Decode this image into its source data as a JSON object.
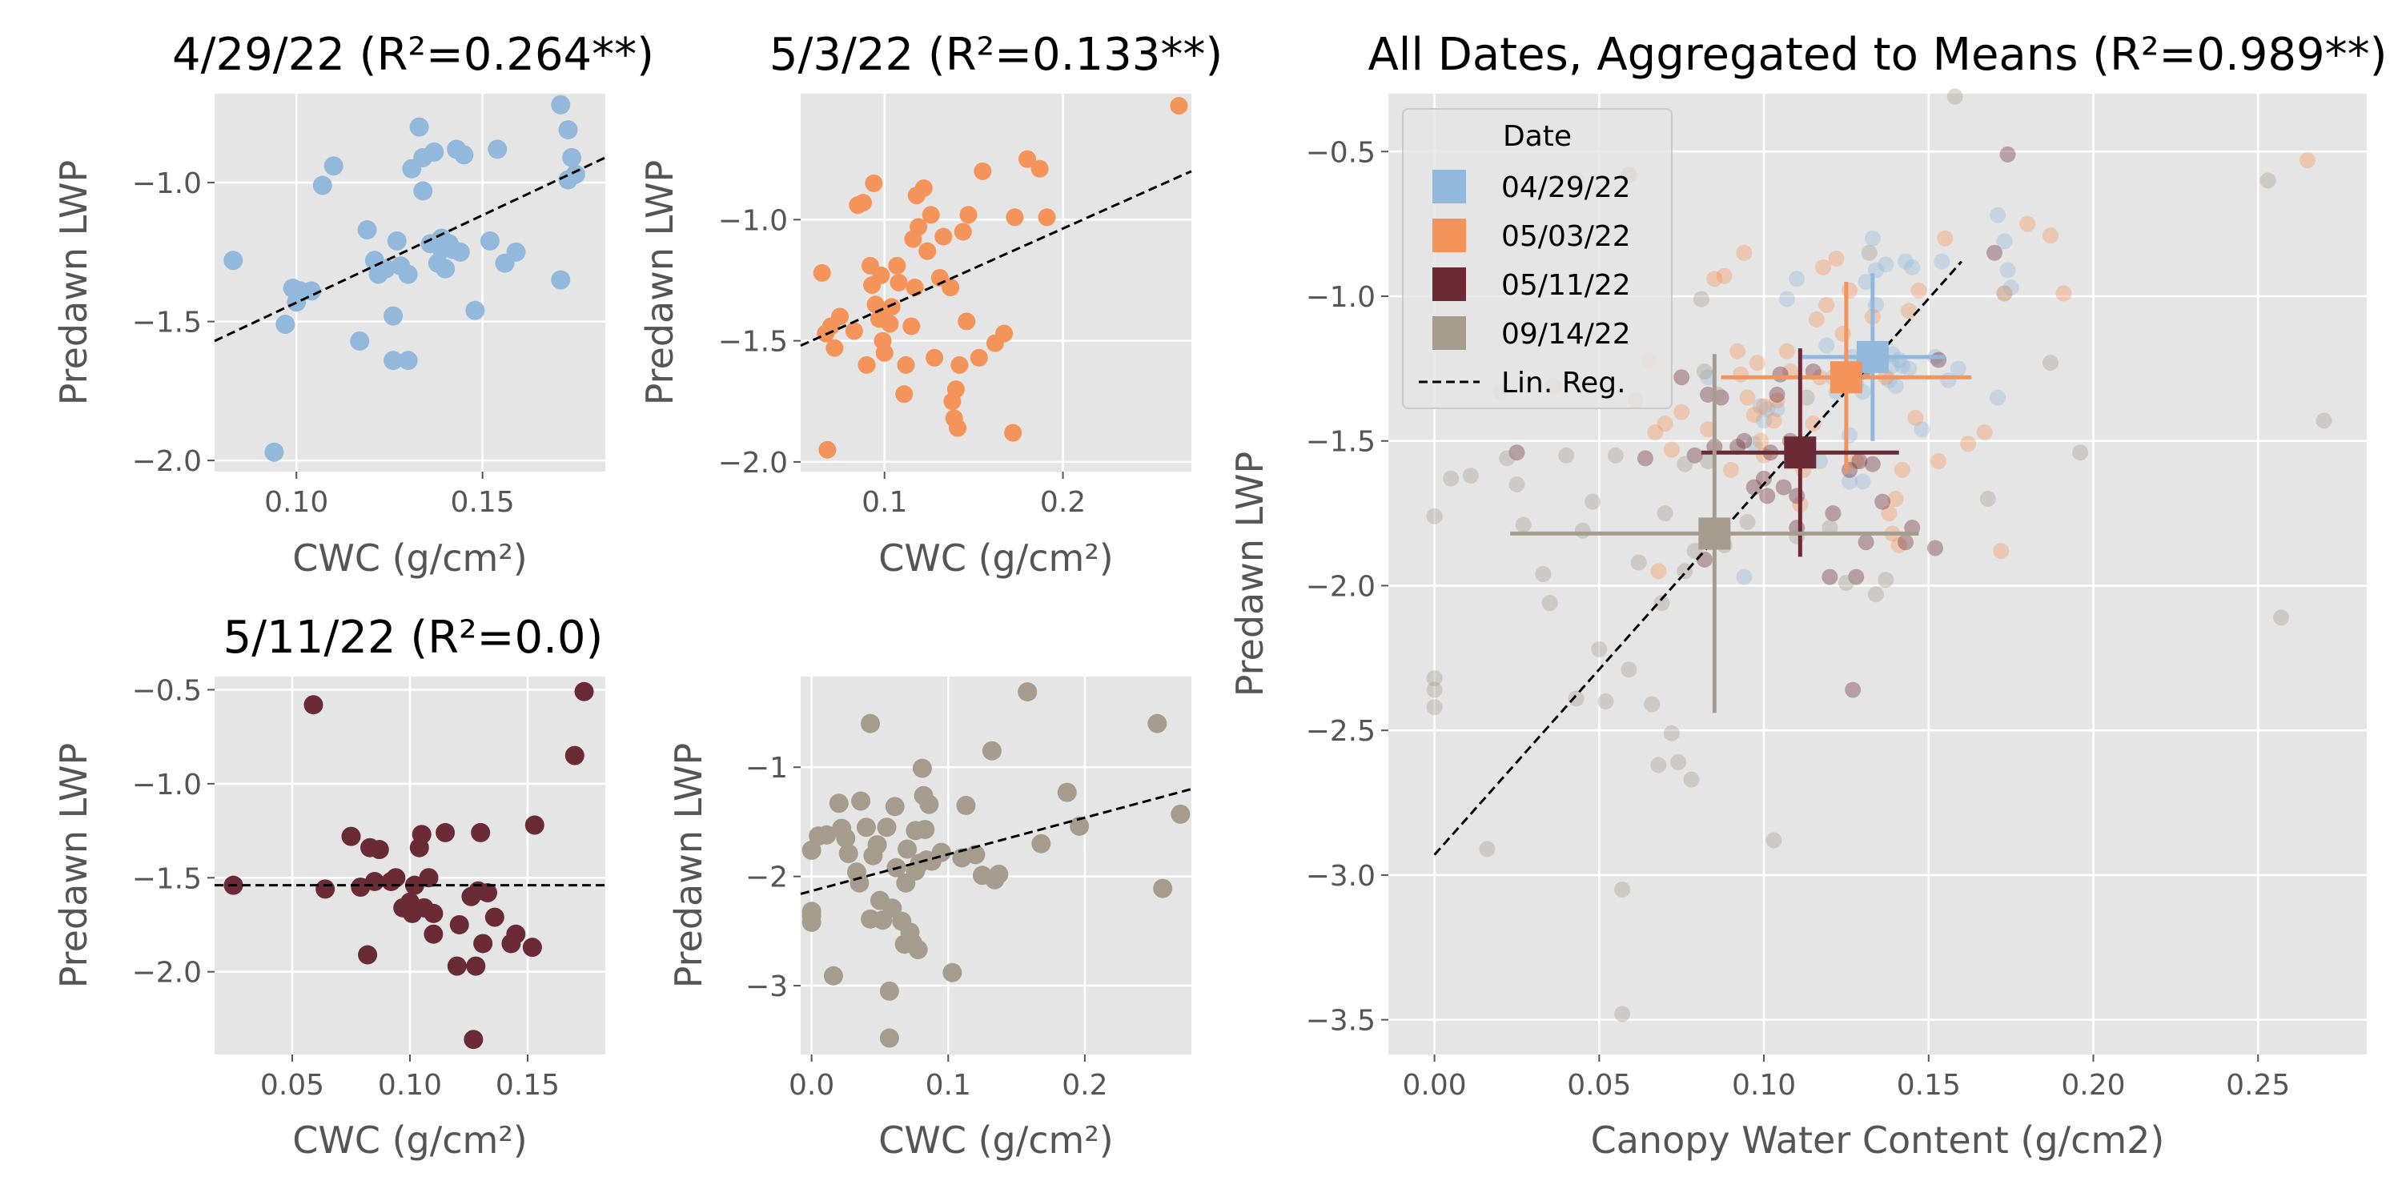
{
  "chart_data": [
    {
      "type": "scatter",
      "title": "4/29/22 (R²=0.264**)",
      "xlabel": "CWC (g/cm²)",
      "ylabel": "Predawn LWP",
      "xlim": [
        0.078,
        0.183
      ],
      "ylim": [
        -2.04,
        -0.68
      ],
      "xticks": [
        0.1,
        0.15
      ],
      "xtick_labels": [
        "0.10",
        "0.15"
      ],
      "yticks": [
        -2.0,
        -1.5,
        -1.0
      ],
      "ytick_labels": [
        "−2.0",
        "−1.5",
        "−1.0"
      ],
      "color": "#92b9db",
      "points": [
        [
          0.083,
          -1.28
        ],
        [
          0.094,
          -1.97
        ],
        [
          0.097,
          -1.51
        ],
        [
          0.099,
          -1.38
        ],
        [
          0.1,
          -1.43
        ],
        [
          0.101,
          -1.39
        ],
        [
          0.104,
          -1.39
        ],
        [
          0.107,
          -1.01
        ],
        [
          0.11,
          -0.94
        ],
        [
          0.117,
          -1.57
        ],
        [
          0.119,
          -1.17
        ],
        [
          0.121,
          -1.28
        ],
        [
          0.122,
          -1.33
        ],
        [
          0.124,
          -1.31
        ],
        [
          0.126,
          -1.48
        ],
        [
          0.126,
          -1.64
        ],
        [
          0.127,
          -1.21
        ],
        [
          0.128,
          -1.3
        ],
        [
          0.13,
          -1.33
        ],
        [
          0.13,
          -1.64
        ],
        [
          0.131,
          -0.95
        ],
        [
          0.133,
          -0.8
        ],
        [
          0.134,
          -0.91
        ],
        [
          0.134,
          -1.03
        ],
        [
          0.136,
          -1.22
        ],
        [
          0.137,
          -0.89
        ],
        [
          0.138,
          -1.29
        ],
        [
          0.139,
          -1.2
        ],
        [
          0.139,
          -1.24
        ],
        [
          0.14,
          -1.31
        ],
        [
          0.141,
          -1.22
        ],
        [
          0.142,
          -1.24
        ],
        [
          0.143,
          -0.88
        ],
        [
          0.144,
          -1.25
        ],
        [
          0.145,
          -0.9
        ],
        [
          0.148,
          -1.46
        ],
        [
          0.152,
          -1.21
        ],
        [
          0.154,
          -0.88
        ],
        [
          0.156,
          -1.29
        ],
        [
          0.159,
          -1.25
        ],
        [
          0.171,
          -1.35
        ],
        [
          0.171,
          -0.72
        ],
        [
          0.173,
          -0.99
        ],
        [
          0.173,
          -0.81
        ],
        [
          0.174,
          -0.91
        ],
        [
          0.175,
          -0.97
        ]
      ],
      "regression": {
        "x0": 0.078,
        "y0": -1.57,
        "x1": 0.183,
        "y1": -0.91
      }
    },
    {
      "type": "scatter",
      "title": "5/3/22 (R²=0.133**)",
      "xlabel": "CWC (g/cm²)",
      "ylabel": "Predawn LWP",
      "xlim": [
        0.053,
        0.272
      ],
      "ylim": [
        -2.04,
        -0.48
      ],
      "xticks": [
        0.1,
        0.2
      ],
      "xtick_labels": [
        "0.1",
        "0.2"
      ],
      "yticks": [
        -2.0,
        -1.5,
        -1.0
      ],
      "ytick_labels": [
        "−2.0",
        "−1.5",
        "−1.0"
      ],
      "color": "#f4935a",
      "points": [
        [
          0.065,
          -1.22
        ],
        [
          0.067,
          -1.47
        ],
        [
          0.068,
          -1.95
        ],
        [
          0.07,
          -1.44
        ],
        [
          0.072,
          -1.53
        ],
        [
          0.075,
          -1.4
        ],
        [
          0.083,
          -1.46
        ],
        [
          0.085,
          -0.94
        ],
        [
          0.088,
          -0.93
        ],
        [
          0.09,
          -1.6
        ],
        [
          0.092,
          -1.19
        ],
        [
          0.093,
          -1.27
        ],
        [
          0.094,
          -0.85
        ],
        [
          0.095,
          -1.35
        ],
        [
          0.097,
          -1.41
        ],
        [
          0.098,
          -1.23
        ],
        [
          0.099,
          -1.5
        ],
        [
          0.1,
          -1.38
        ],
        [
          0.1,
          -1.55
        ],
        [
          0.103,
          -1.43
        ],
        [
          0.104,
          -1.36
        ],
        [
          0.107,
          -1.19
        ],
        [
          0.108,
          -1.26
        ],
        [
          0.111,
          -1.72
        ],
        [
          0.112,
          -1.6
        ],
        [
          0.115,
          -1.44
        ],
        [
          0.116,
          -1.08
        ],
        [
          0.117,
          -1.28
        ],
        [
          0.118,
          -0.9
        ],
        [
          0.119,
          -1.03
        ],
        [
          0.122,
          -0.87
        ],
        [
          0.124,
          -1.13
        ],
        [
          0.126,
          -0.98
        ],
        [
          0.128,
          -1.57
        ],
        [
          0.131,
          -1.24
        ],
        [
          0.133,
          -1.07
        ],
        [
          0.137,
          -1.28
        ],
        [
          0.138,
          -1.75
        ],
        [
          0.139,
          -1.82
        ],
        [
          0.14,
          -1.7
        ],
        [
          0.141,
          -1.86
        ],
        [
          0.142,
          -1.6
        ],
        [
          0.144,
          -1.05
        ],
        [
          0.146,
          -1.42
        ],
        [
          0.147,
          -0.98
        ],
        [
          0.153,
          -1.57
        ],
        [
          0.155,
          -0.8
        ],
        [
          0.162,
          -1.51
        ],
        [
          0.167,
          -1.47
        ],
        [
          0.172,
          -1.88
        ],
        [
          0.173,
          -0.99
        ],
        [
          0.18,
          -0.75
        ],
        [
          0.187,
          -0.79
        ],
        [
          0.191,
          -0.99
        ],
        [
          0.265,
          -0.53
        ]
      ],
      "regression": {
        "x0": 0.053,
        "y0": -1.52,
        "x1": 0.272,
        "y1": -0.8
      }
    },
    {
      "type": "scatter",
      "title": "5/11/22 (R²=0.0)",
      "xlabel": "CWC (g/cm²)",
      "ylabel": "Predawn LWP",
      "xlim": [
        0.017,
        0.183
      ],
      "ylim": [
        -2.44,
        -0.43
      ],
      "xticks": [
        0.05,
        0.1,
        0.15
      ],
      "xtick_labels": [
        "0.05",
        "0.10",
        "0.15"
      ],
      "yticks": [
        -2.0,
        -1.5,
        -1.0,
        -0.5
      ],
      "ytick_labels": [
        "−2.0",
        "−1.5",
        "−1.0",
        "−0.5"
      ],
      "color": "#6b2b36",
      "points": [
        [
          0.025,
          -1.54
        ],
        [
          0.059,
          -0.58
        ],
        [
          0.064,
          -1.56
        ],
        [
          0.075,
          -1.28
        ],
        [
          0.079,
          -1.55
        ],
        [
          0.082,
          -1.91
        ],
        [
          0.083,
          -1.34
        ],
        [
          0.085,
          -1.52
        ],
        [
          0.087,
          -1.35
        ],
        [
          0.092,
          -1.52
        ],
        [
          0.094,
          -1.5
        ],
        [
          0.097,
          -1.66
        ],
        [
          0.1,
          -1.63
        ],
        [
          0.101,
          -1.69
        ],
        [
          0.102,
          -1.54
        ],
        [
          0.104,
          -1.34
        ],
        [
          0.105,
          -1.27
        ],
        [
          0.106,
          -1.66
        ],
        [
          0.108,
          -1.5
        ],
        [
          0.11,
          -1.69
        ],
        [
          0.11,
          -1.8
        ],
        [
          0.115,
          -1.26
        ],
        [
          0.12,
          -1.97
        ],
        [
          0.121,
          -1.75
        ],
        [
          0.126,
          -1.6
        ],
        [
          0.127,
          -2.36
        ],
        [
          0.128,
          -1.97
        ],
        [
          0.129,
          -1.57
        ],
        [
          0.13,
          -1.26
        ],
        [
          0.131,
          -1.85
        ],
        [
          0.133,
          -1.58
        ],
        [
          0.136,
          -1.71
        ],
        [
          0.143,
          -1.85
        ],
        [
          0.145,
          -1.8
        ],
        [
          0.152,
          -1.87
        ],
        [
          0.153,
          -1.22
        ],
        [
          0.17,
          -0.85
        ],
        [
          0.174,
          -0.51
        ]
      ],
      "regression": {
        "x0": 0.017,
        "y0": -1.54,
        "x1": 0.183,
        "y1": -1.54
      }
    },
    {
      "type": "scatter",
      "title": "",
      "xlabel": "CWC (g/cm²)",
      "ylabel": "Predawn LWP",
      "xlim": [
        -0.008,
        0.278
      ],
      "ylim": [
        -3.63,
        -0.17
      ],
      "xticks": [
        0.0,
        0.1,
        0.2
      ],
      "xtick_labels": [
        "0.0",
        "0.1",
        "0.2"
      ],
      "yticks": [
        -3,
        -2,
        -1
      ],
      "ytick_labels": [
        "−3",
        "−2",
        "−1"
      ],
      "color": "#a69c8d",
      "points": [
        [
          0.0,
          -1.76
        ],
        [
          0.0,
          -2.32
        ],
        [
          0.0,
          -2.36
        ],
        [
          0.0,
          -2.42
        ],
        [
          0.005,
          -1.63
        ],
        [
          0.011,
          -1.62
        ],
        [
          0.016,
          -2.91
        ],
        [
          0.02,
          -1.33
        ],
        [
          0.022,
          -1.56
        ],
        [
          0.025,
          -1.65
        ],
        [
          0.027,
          -1.79
        ],
        [
          0.033,
          -1.96
        ],
        [
          0.035,
          -2.06
        ],
        [
          0.036,
          -1.31
        ],
        [
          0.04,
          -1.55
        ],
        [
          0.043,
          -0.6
        ],
        [
          0.043,
          -2.39
        ],
        [
          0.045,
          -1.81
        ],
        [
          0.048,
          -1.71
        ],
        [
          0.05,
          -2.22
        ],
        [
          0.052,
          -2.4
        ],
        [
          0.055,
          -1.55
        ],
        [
          0.057,
          -3.05
        ],
        [
          0.057,
          -3.48
        ],
        [
          0.059,
          -2.29
        ],
        [
          0.061,
          -1.36
        ],
        [
          0.062,
          -1.92
        ],
        [
          0.066,
          -2.41
        ],
        [
          0.068,
          -2.62
        ],
        [
          0.069,
          -2.06
        ],
        [
          0.07,
          -1.75
        ],
        [
          0.072,
          -2.51
        ],
        [
          0.074,
          -2.61
        ],
        [
          0.076,
          -1.58
        ],
        [
          0.076,
          -1.95
        ],
        [
          0.078,
          -2.67
        ],
        [
          0.079,
          -1.88
        ],
        [
          0.081,
          -1.01
        ],
        [
          0.082,
          -1.26
        ],
        [
          0.083,
          -1.57
        ],
        [
          0.084,
          -1.85
        ],
        [
          0.086,
          -1.34
        ],
        [
          0.088,
          -1.86
        ],
        [
          0.095,
          -1.78
        ],
        [
          0.103,
          -2.88
        ],
        [
          0.11,
          -1.83
        ],
        [
          0.113,
          -1.35
        ],
        [
          0.12,
          -1.8
        ],
        [
          0.125,
          -1.99
        ],
        [
          0.132,
          -0.85
        ],
        [
          0.134,
          -2.03
        ],
        [
          0.137,
          -1.98
        ],
        [
          0.158,
          -0.31
        ],
        [
          0.168,
          -1.7
        ],
        [
          0.187,
          -1.23
        ],
        [
          0.196,
          -1.54
        ],
        [
          0.253,
          -0.6
        ],
        [
          0.257,
          -2.11
        ],
        [
          0.27,
          -1.43
        ]
      ],
      "regression": {
        "x0": -0.008,
        "y0": -2.16,
        "x1": 0.278,
        "y1": -1.2
      }
    },
    {
      "type": "scatter",
      "title": "All Dates, Aggregated to Means (R²=0.989**)",
      "xlabel": "Canopy Water Content (g/cm2)",
      "ylabel": "Predawn LWP",
      "xlim": [
        -0.014,
        0.283
      ],
      "ylim": [
        -3.62,
        -0.3
      ],
      "xticks": [
        0.0,
        0.05,
        0.1,
        0.15,
        0.2,
        0.25
      ],
      "xtick_labels": [
        "0.00",
        "0.05",
        "0.10",
        "0.15",
        "0.20",
        "0.25"
      ],
      "yticks": [
        -3.5,
        -3.0,
        -2.5,
        -2.0,
        -1.5,
        -1.0,
        -0.5
      ],
      "ytick_labels": [
        "−3.5",
        "−3.0",
        "−2.5",
        "−2.0",
        "−1.5",
        "−1.0",
        "−0.5"
      ],
      "legend": {
        "title": "Date",
        "placement": "top-left",
        "entries": [
          {
            "label": "04/29/22",
            "color": "#92b9db"
          },
          {
            "label": "05/03/22",
            "color": "#f4935a"
          },
          {
            "label": "05/11/22",
            "color": "#6b2b36"
          },
          {
            "label": "09/14/22",
            "color": "#a69c8d"
          }
        ],
        "line_label": "Lin. Reg."
      },
      "means": [
        {
          "x": 0.133,
          "y": -1.21,
          "x_err": 0.022,
          "y_err": 0.29,
          "color": "#92b9db"
        },
        {
          "x": 0.125,
          "y": -1.28,
          "x_err": 0.038,
          "y_err": 0.33,
          "color": "#f4935a"
        },
        {
          "x": 0.111,
          "y": -1.54,
          "x_err": 0.03,
          "y_err": 0.36,
          "color": "#6b2b36"
        },
        {
          "x": 0.085,
          "y": -1.82,
          "x_err": 0.062,
          "y_err": 0.62,
          "color": "#a69c8d"
        }
      ],
      "regression": {
        "x0": 0.0,
        "y0": -2.93,
        "x1": 0.16,
        "y1": -0.88
      }
    }
  ]
}
